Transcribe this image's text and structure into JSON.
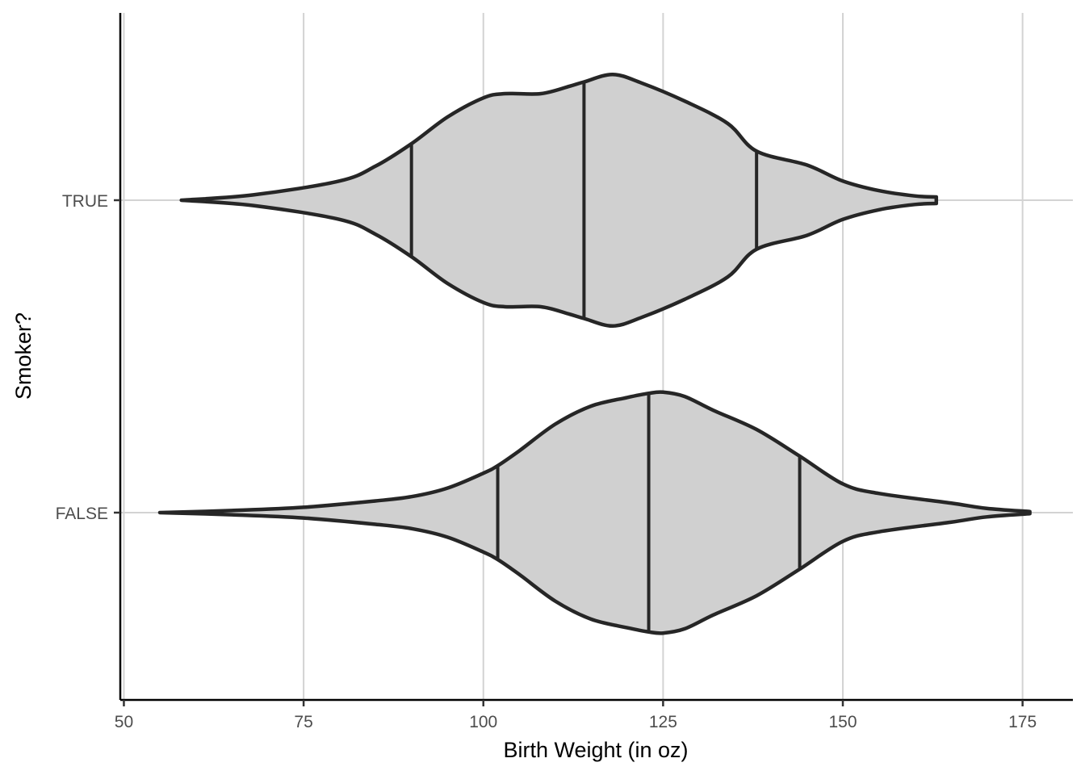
{
  "chart_data": {
    "type": "violin",
    "orientation": "horizontal",
    "xlabel": "Birth Weight (in oz)",
    "ylabel": "Smoker?",
    "xlim": [
      49.5,
      182
    ],
    "x_ticks": [
      50,
      75,
      100,
      125,
      150,
      175
    ],
    "categories": [
      "TRUE",
      "FALSE"
    ],
    "grid": true,
    "colors": {
      "fill": "#d0d0d0",
      "outline": "#262626",
      "grid": "#d3d3d3"
    },
    "series": [
      {
        "category": "TRUE",
        "min": 58,
        "max": 163,
        "quantiles": {
          "q25": 90,
          "median": 114,
          "q75": 138
        },
        "density": [
          [
            58,
            0.0
          ],
          [
            68,
            0.05
          ],
          [
            80,
            0.18
          ],
          [
            85,
            0.32
          ],
          [
            90,
            0.53
          ],
          [
            95,
            0.78
          ],
          [
            100,
            0.96
          ],
          [
            103,
            1.0
          ],
          [
            108,
            1.0
          ],
          [
            112,
            1.07
          ],
          [
            114,
            1.11
          ],
          [
            118,
            1.18
          ],
          [
            122,
            1.1
          ],
          [
            128,
            0.93
          ],
          [
            134,
            0.72
          ],
          [
            138,
            0.46
          ],
          [
            145,
            0.33
          ],
          [
            150,
            0.18
          ],
          [
            155,
            0.09
          ],
          [
            160,
            0.04
          ],
          [
            163,
            0.03
          ]
        ]
      },
      {
        "category": "FALSE",
        "min": 55,
        "max": 176,
        "quantiles": {
          "q25": 102,
          "median": 123,
          "q75": 144
        },
        "density": [
          [
            55,
            0.0
          ],
          [
            65,
            0.02
          ],
          [
            75,
            0.05
          ],
          [
            85,
            0.11
          ],
          [
            90,
            0.15
          ],
          [
            95,
            0.23
          ],
          [
            100,
            0.37
          ],
          [
            102,
            0.44
          ],
          [
            105,
            0.58
          ],
          [
            110,
            0.83
          ],
          [
            115,
            1.0
          ],
          [
            120,
            1.08
          ],
          [
            123,
            1.12
          ],
          [
            125,
            1.13
          ],
          [
            128,
            1.09
          ],
          [
            132,
            0.96
          ],
          [
            138,
            0.78
          ],
          [
            144,
            0.53
          ],
          [
            150,
            0.27
          ],
          [
            155,
            0.18
          ],
          [
            165,
            0.09
          ],
          [
            170,
            0.04
          ],
          [
            176,
            0.01
          ]
        ]
      }
    ]
  }
}
